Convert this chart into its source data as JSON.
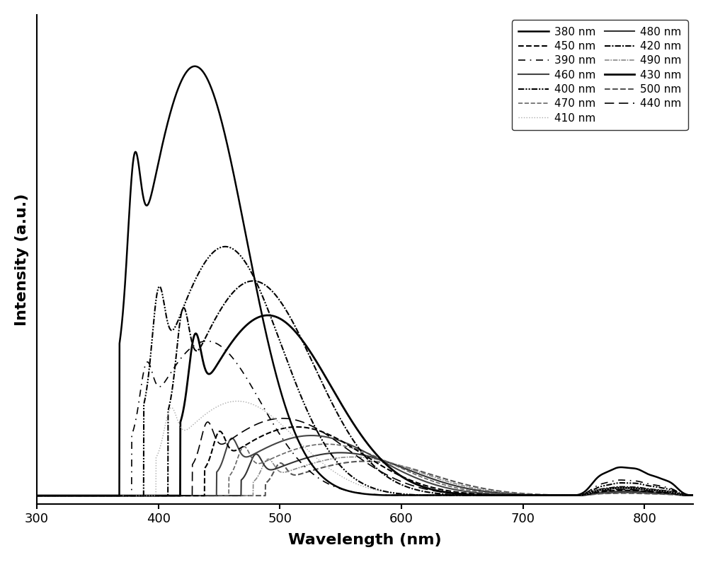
{
  "excitation_wavelengths": [
    380,
    390,
    400,
    410,
    420,
    430,
    440,
    450,
    460,
    470,
    480,
    490,
    500
  ],
  "xmin": 300,
  "xmax": 840,
  "xlabel": "Wavelength (nm)",
  "ylabel": "Intensity (a.u.)",
  "em_params": {
    "380": {
      "peak": 430,
      "sigma": 42,
      "amp": 1.0,
      "sc_amp": 0.3,
      "sc_sigma": 5
    },
    "390": {
      "peak": 440,
      "sigma": 44,
      "amp": 0.36,
      "sc_amp": 0.12,
      "sc_sigma": 5
    },
    "400": {
      "peak": 455,
      "sigma": 46,
      "amp": 0.58,
      "sc_amp": 0.2,
      "sc_sigma": 5
    },
    "410": {
      "peak": 465,
      "sigma": 48,
      "amp": 0.22,
      "sc_amp": 0.09,
      "sc_sigma": 5
    },
    "420": {
      "peak": 478,
      "sigma": 50,
      "amp": 0.5,
      "sc_amp": 0.18,
      "sc_sigma": 5
    },
    "430": {
      "peak": 490,
      "sigma": 52,
      "amp": 0.42,
      "sc_amp": 0.16,
      "sc_sigma": 5
    },
    "440": {
      "peak": 502,
      "sigma": 53,
      "amp": 0.18,
      "sc_amp": 0.08,
      "sc_sigma": 5
    },
    "450": {
      "peak": 514,
      "sigma": 54,
      "amp": 0.16,
      "sc_amp": 0.07,
      "sc_sigma": 5
    },
    "460": {
      "peak": 526,
      "sigma": 55,
      "amp": 0.14,
      "sc_amp": 0.065,
      "sc_sigma": 5
    },
    "470": {
      "peak": 538,
      "sigma": 55,
      "amp": 0.12,
      "sc_amp": 0.058,
      "sc_sigma": 5
    },
    "480": {
      "peak": 550,
      "sigma": 55,
      "amp": 0.1,
      "sc_amp": 0.052,
      "sc_sigma": 5
    },
    "490": {
      "peak": 560,
      "sigma": 55,
      "amp": 0.09,
      "sc_amp": 0.045,
      "sc_sigma": 5
    },
    "500": {
      "peak": 570,
      "sigma": 55,
      "amp": 0.08,
      "sc_amp": 0.04,
      "sc_sigma": 5
    }
  },
  "nir_params": {
    "380": {
      "amps": [
        0.032,
        0.058,
        0.048,
        0.032,
        0.022
      ],
      "positions": [
        762,
        778,
        795,
        810,
        822
      ],
      "sigmas": [
        7,
        9,
        8,
        7,
        6
      ]
    },
    "390": {
      "amps": [
        0.018,
        0.032,
        0.026,
        0.018,
        0.012
      ],
      "positions": [
        762,
        778,
        795,
        810,
        822
      ],
      "sigmas": [
        7,
        9,
        8,
        7,
        6
      ]
    },
    "400": {
      "amps": [
        0.014,
        0.026,
        0.022,
        0.015,
        0.01
      ],
      "positions": [
        762,
        778,
        795,
        810,
        822
      ],
      "sigmas": [
        7,
        9,
        8,
        7,
        6
      ]
    },
    "410": {
      "amps": [
        0.009,
        0.016,
        0.013,
        0.009,
        0.006
      ],
      "positions": [
        762,
        778,
        795,
        810,
        822
      ],
      "sigmas": [
        7,
        9,
        8,
        7,
        6
      ]
    },
    "420": {
      "amps": [
        0.01,
        0.018,
        0.015,
        0.01,
        0.007
      ],
      "positions": [
        762,
        778,
        795,
        810,
        822
      ],
      "sigmas": [
        7,
        9,
        8,
        7,
        6
      ]
    },
    "430": {
      "amps": [
        0.009,
        0.016,
        0.013,
        0.009,
        0.006
      ],
      "positions": [
        762,
        778,
        795,
        810,
        822
      ],
      "sigmas": [
        7,
        9,
        8,
        7,
        6
      ]
    },
    "440": {
      "amps": [
        0.007,
        0.013,
        0.01,
        0.007,
        0.005
      ],
      "positions": [
        762,
        778,
        795,
        810,
        822
      ],
      "sigmas": [
        7,
        9,
        8,
        7,
        6
      ]
    },
    "450": {
      "amps": [
        0.006,
        0.011,
        0.009,
        0.006,
        0.004
      ],
      "positions": [
        762,
        778,
        795,
        810,
        822
      ],
      "sigmas": [
        7,
        9,
        8,
        7,
        6
      ]
    },
    "460": {
      "amps": [
        0.005,
        0.009,
        0.008,
        0.005,
        0.004
      ],
      "positions": [
        762,
        778,
        795,
        810,
        822
      ],
      "sigmas": [
        7,
        9,
        8,
        7,
        6
      ]
    },
    "470": {
      "amps": [
        0.004,
        0.008,
        0.007,
        0.005,
        0.003
      ],
      "positions": [
        762,
        778,
        795,
        810,
        822
      ],
      "sigmas": [
        7,
        9,
        8,
        7,
        6
      ]
    },
    "480": {
      "amps": [
        0.004,
        0.007,
        0.006,
        0.004,
        0.003
      ],
      "positions": [
        762,
        778,
        795,
        810,
        822
      ],
      "sigmas": [
        7,
        9,
        8,
        7,
        6
      ]
    },
    "490": {
      "amps": [
        0.003,
        0.006,
        0.005,
        0.003,
        0.002
      ],
      "positions": [
        762,
        778,
        795,
        810,
        822
      ],
      "sigmas": [
        7,
        9,
        8,
        7,
        6
      ]
    },
    "500": {
      "amps": [
        0.003,
        0.005,
        0.004,
        0.003,
        0.002
      ],
      "positions": [
        762,
        778,
        795,
        810,
        822
      ],
      "sigmas": [
        7,
        9,
        8,
        7,
        6
      ]
    }
  },
  "linestyle_map": {
    "380": {
      "lw": 1.8,
      "ls": "solid",
      "color": "#000000"
    },
    "390": {
      "lw": 1.2,
      "ls": "loosely_dashdot",
      "color": "#000000"
    },
    "400": {
      "lw": 1.5,
      "ls": "densely_dashdotdot",
      "color": "#000000"
    },
    "410": {
      "lw": 1.0,
      "ls": "dotted",
      "color": "#aaaaaa"
    },
    "420": {
      "lw": 1.5,
      "ls": "densely_dashdot",
      "color": "#000000"
    },
    "430": {
      "lw": 2.0,
      "ls": "solid",
      "color": "#000000"
    },
    "440": {
      "lw": 1.2,
      "ls": "loosely_dashed",
      "color": "#000000"
    },
    "450": {
      "lw": 1.5,
      "ls": "dashed",
      "color": "#000000"
    },
    "460": {
      "lw": 1.5,
      "ls": "solid",
      "color": "#444444"
    },
    "470": {
      "lw": 1.2,
      "ls": "dashed",
      "color": "#666666"
    },
    "480": {
      "lw": 1.5,
      "ls": "solid",
      "color": "#333333"
    },
    "490": {
      "lw": 1.2,
      "ls": "densely_dashdot",
      "color": "#888888"
    },
    "500": {
      "lw": 1.5,
      "ls": "dashed",
      "color": "#555555"
    }
  }
}
